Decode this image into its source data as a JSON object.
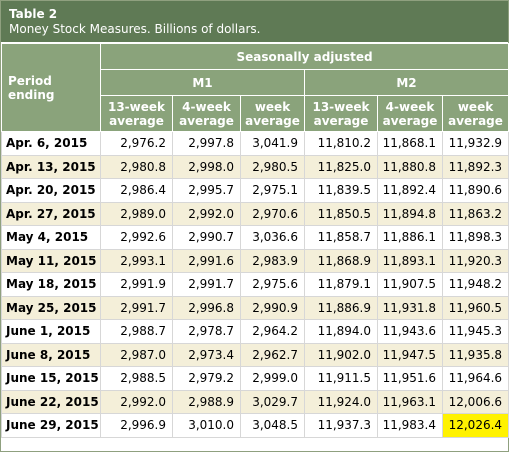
{
  "table": {
    "title": "Table 2",
    "subtitle": "Money Stock Measures. Billions of dollars.",
    "header": {
      "period_label": "Period ending",
      "group_label": "Seasonally adjusted",
      "m1_label": "M1",
      "m2_label": "M2",
      "columns": [
        "13-week average",
        "4-week average",
        "week average",
        "13-week average",
        "4-week average",
        "week average"
      ]
    },
    "rows": [
      {
        "period": "Apr. 6, 2015",
        "values": [
          "2,976.2",
          "2,997.8",
          "3,041.9",
          "11,810.2",
          "11,868.1",
          "11,932.9"
        ]
      },
      {
        "period": "Apr. 13, 2015",
        "values": [
          "2,980.8",
          "2,998.0",
          "2,980.5",
          "11,825.0",
          "11,880.8",
          "11,892.3"
        ]
      },
      {
        "period": "Apr. 20, 2015",
        "values": [
          "2,986.4",
          "2,995.7",
          "2,975.1",
          "11,839.5",
          "11,892.4",
          "11,890.6"
        ]
      },
      {
        "period": "Apr. 27, 2015",
        "values": [
          "2,989.0",
          "2,992.0",
          "2,970.6",
          "11,850.5",
          "11,894.8",
          "11,863.2"
        ]
      },
      {
        "period": "May 4, 2015",
        "values": [
          "2,992.6",
          "2,990.7",
          "3,036.6",
          "11,858.7",
          "11,886.1",
          "11,898.3"
        ]
      },
      {
        "period": "May 11, 2015",
        "values": [
          "2,993.1",
          "2,991.6",
          "2,983.9",
          "11,868.9",
          "11,893.1",
          "11,920.3"
        ]
      },
      {
        "period": "May 18, 2015",
        "values": [
          "2,991.9",
          "2,991.7",
          "2,975.6",
          "11,879.1",
          "11,907.5",
          "11,948.2"
        ]
      },
      {
        "period": "May 25, 2015",
        "values": [
          "2,991.7",
          "2,996.8",
          "2,990.9",
          "11,886.9",
          "11,931.8",
          "11,960.5"
        ]
      },
      {
        "period": "June 1, 2015",
        "values": [
          "2,988.7",
          "2,978.7",
          "2,964.2",
          "11,894.0",
          "11,943.6",
          "11,945.3"
        ]
      },
      {
        "period": "June 8, 2015",
        "values": [
          "2,987.0",
          "2,973.4",
          "2,962.7",
          "11,902.0",
          "11,947.5",
          "11,935.8"
        ]
      },
      {
        "period": "June 15, 2015",
        "values": [
          "2,988.5",
          "2,979.2",
          "2,999.0",
          "11,911.5",
          "11,951.6",
          "11,964.6"
        ]
      },
      {
        "period": "June 22, 2015",
        "values": [
          "2,992.0",
          "2,988.9",
          "3,029.7",
          "11,924.0",
          "11,963.1",
          "12,006.6"
        ]
      },
      {
        "period": "June 29, 2015",
        "values": [
          "2,996.9",
          "3,010.0",
          "3,048.5",
          "11,937.3",
          "11,983.4",
          "12,026.4"
        ]
      }
    ],
    "highlight_cell": {
      "row": 12,
      "col": 5
    },
    "colors": {
      "title_bg": "#5f7a55",
      "header_bg": "#8aa37b",
      "row_shade": "#f4efd9",
      "highlight": "#fff200"
    }
  }
}
